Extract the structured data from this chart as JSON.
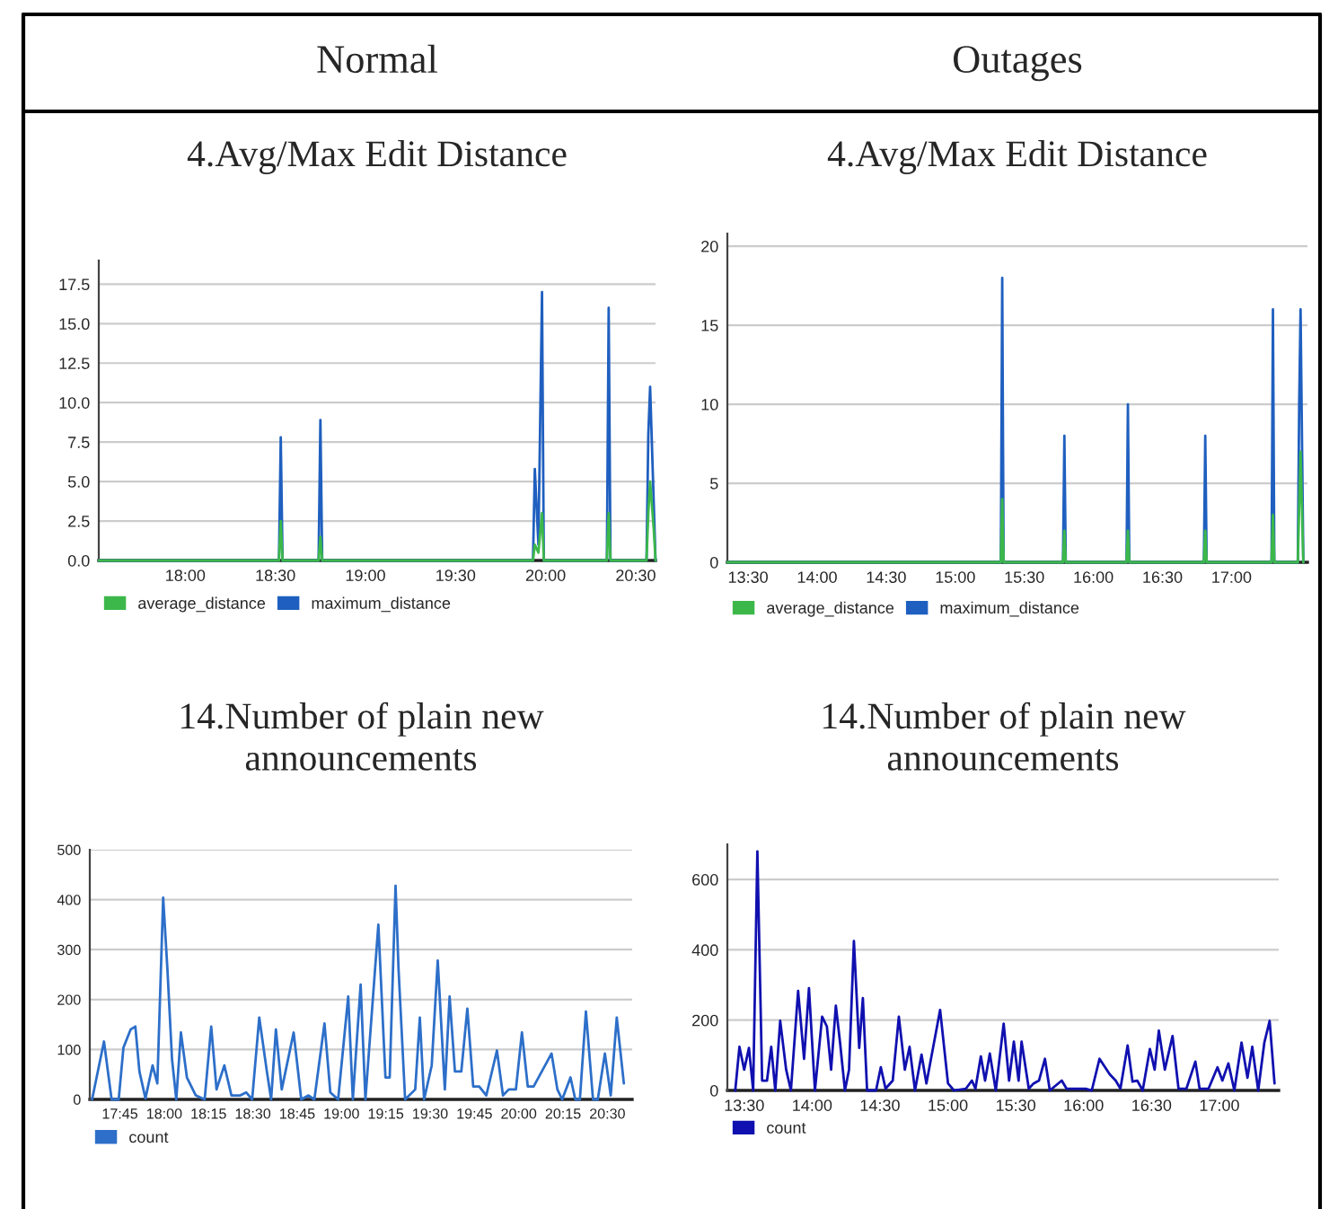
{
  "chart_data": [
    {
      "type": "line",
      "title": "4.Avg/Max Edit Distance",
      "annotations": [
        "Normal"
      ],
      "grid": "y",
      "legend": "bottom left",
      "xlim": [
        17.52,
        20.61
      ],
      "ylim": [
        0,
        19
      ],
      "xticks": [
        {
          "value": 18,
          "label": "18:00"
        },
        {
          "value": 18.5,
          "label": "18:30"
        },
        {
          "value": 19,
          "label": "19:00"
        },
        {
          "value": 19.5,
          "label": "19:30"
        },
        {
          "value": 20,
          "label": "20:00"
        },
        {
          "value": 20.5,
          "label": "20:30"
        }
      ],
      "yticks": [
        {
          "value": 0,
          "label": "0.0"
        },
        2.5,
        {
          "value": 5,
          "label": "5.0"
        },
        7.5,
        {
          "value": 10,
          "label": "10.0"
        },
        12.5,
        {
          "value": 15,
          "label": "15.0"
        },
        17.5
      ],
      "series": [
        {
          "name": "average_distance",
          "color": "#3cb84a",
          "x": [
            17.52,
            18.52,
            18.53,
            18.54,
            18.74,
            18.75,
            18.76,
            19.93,
            19.94,
            19.96,
            19.98,
            19.99,
            20.34,
            20.35,
            20.36,
            20.56,
            20.57,
            20.58,
            20.6,
            20.61
          ],
          "values": [
            0,
            0,
            2.5,
            0,
            0,
            1.5,
            0,
            0,
            1,
            0.5,
            3,
            0,
            0,
            3,
            0,
            0,
            3,
            5,
            2,
            0
          ]
        },
        {
          "name": "maximum_distance",
          "color": "#1f5fbf",
          "x": [
            17.52,
            18.52,
            18.53,
            18.54,
            18.74,
            18.75,
            18.76,
            19.93,
            19.94,
            19.96,
            19.98,
            19.99,
            20.34,
            20.35,
            20.36,
            20.56,
            20.57,
            20.58,
            20.61
          ],
          "values": [
            0,
            0,
            7.8,
            0,
            0,
            8.9,
            0,
            0,
            5.8,
            1,
            17,
            0,
            0,
            16,
            0,
            0,
            8,
            11,
            0
          ]
        }
      ]
    },
    {
      "type": "line",
      "title": "4.Avg/Max Edit Distance",
      "annotations": [
        "Outages"
      ],
      "grid": "y",
      "legend": "bottom left",
      "xlim": [
        13.35,
        17.55
      ],
      "ylim": [
        0,
        20.8
      ],
      "xticks": [
        {
          "value": 13.5,
          "label": "13:30"
        },
        {
          "value": 14,
          "label": "14:00"
        },
        {
          "value": 14.5,
          "label": "14:30"
        },
        {
          "value": 15,
          "label": "15:00"
        },
        {
          "value": 15.5,
          "label": "15:30"
        },
        {
          "value": 16,
          "label": "16:00"
        },
        {
          "value": 16.5,
          "label": "16:30"
        },
        {
          "value": 17,
          "label": "17:00"
        }
      ],
      "yticks": [
        0,
        5,
        10,
        15,
        20
      ],
      "series": [
        {
          "name": "average_distance",
          "color": "#3cb84a",
          "x": [
            13.35,
            15.33,
            15.34,
            15.35,
            15.78,
            15.79,
            15.8,
            16.24,
            16.25,
            16.26,
            16.8,
            16.81,
            16.82,
            17.29,
            17.3,
            17.31,
            17.48,
            17.5,
            17.52
          ],
          "values": [
            0,
            0,
            4,
            0,
            0,
            2,
            0,
            0,
            2,
            0,
            0,
            2,
            0,
            0,
            3,
            0,
            0,
            7,
            0
          ]
        },
        {
          "name": "maximum_distance",
          "color": "#1f5fbf",
          "x": [
            13.35,
            15.33,
            15.34,
            15.35,
            15.78,
            15.79,
            15.8,
            16.24,
            16.25,
            16.26,
            16.8,
            16.81,
            16.82,
            17.29,
            17.3,
            17.31,
            17.48,
            17.49,
            17.5,
            17.52
          ],
          "values": [
            0,
            0,
            18,
            0,
            0,
            8,
            0,
            0,
            10,
            0,
            0,
            8,
            0,
            0,
            16,
            0,
            0,
            10,
            16,
            0
          ]
        }
      ]
    },
    {
      "type": "line",
      "title": "14.Number of plain new\nannouncements",
      "grid": "y",
      "legend": "bottom left",
      "xlim": [
        17.58,
        20.64
      ],
      "ylim": [
        0,
        500
      ],
      "xticks": [
        {
          "value": 17.75,
          "label": "17:45"
        },
        {
          "value": 18,
          "label": "18:00"
        },
        {
          "value": 18.25,
          "label": "18:15"
        },
        {
          "value": 18.5,
          "label": "18:30"
        },
        {
          "value": 18.75,
          "label": "18:45"
        },
        {
          "value": 19,
          "label": "19:00"
        },
        {
          "value": 19.25,
          "label": "19:15"
        },
        {
          "value": 19.5,
          "label": "19:30"
        },
        {
          "value": 19.75,
          "label": "19:45"
        },
        {
          "value": 20,
          "label": "20:00"
        },
        {
          "value": 20.25,
          "label": "20:15"
        },
        {
          "value": 20.5,
          "label": "20:30"
        }
      ],
      "yticks": [
        0,
        100,
        200,
        300,
        400,
        500
      ],
      "series": [
        {
          "name": "count",
          "color": "#2d6fc9",
          "x": [
            17.593,
            17.66,
            17.703,
            17.743,
            17.77,
            17.81,
            17.837,
            17.86,
            17.894,
            17.934,
            17.961,
            17.994,
            18.018,
            18.044,
            18.068,
            18.094,
            18.128,
            18.178,
            18.228,
            18.265,
            18.295,
            18.339,
            18.379,
            18.429,
            18.462,
            18.496,
            18.536,
            18.579,
            18.603,
            18.63,
            18.663,
            18.73,
            18.773,
            18.814,
            18.847,
            18.904,
            18.937,
            18.981,
            19.038,
            19.064,
            19.108,
            19.135,
            19.208,
            19.248,
            19.272,
            19.305,
            19.322,
            19.359,
            19.416,
            19.442,
            19.466,
            19.509,
            19.543,
            19.583,
            19.61,
            19.64,
            19.676,
            19.71,
            19.743,
            19.777,
            19.817,
            19.877,
            19.911,
            19.944,
            19.984,
            20.018,
            20.051,
            20.084,
            20.185,
            20.218,
            20.245,
            20.292,
            20.319,
            20.345,
            20.379,
            20.419,
            20.446,
            20.486,
            20.519,
            20.553,
            20.593
          ],
          "values": [
            0,
            116,
            0,
            0,
            104,
            140,
            146,
            56,
            2,
            68,
            32,
            404,
            260,
            80,
            0,
            134,
            44,
            8,
            0,
            146,
            20,
            68,
            8,
            8,
            14,
            0,
            164,
            56,
            0,
            140,
            20,
            134,
            0,
            8,
            0,
            152,
            14,
            0,
            206,
            0,
            230,
            0,
            350,
            44,
            44,
            428,
            260,
            0,
            20,
            164,
            0,
            68,
            278,
            20,
            206,
            56,
            56,
            182,
            26,
            26,
            8,
            98,
            8,
            20,
            20,
            134,
            26,
            26,
            92,
            20,
            0,
            44,
            0,
            0,
            176,
            0,
            0,
            92,
            8,
            164,
            32
          ]
        }
      ]
    },
    {
      "type": "line",
      "title": "14.Number of plain new\nannouncements",
      "grid": "y",
      "legend": "bottom left",
      "xlim": [
        13.376,
        17.437
      ],
      "ylim": [
        0,
        700
      ],
      "xticks": [
        {
          "value": 13.5,
          "label": "13:30"
        },
        {
          "value": 14,
          "label": "14:00"
        },
        {
          "value": 14.5,
          "label": "14:30"
        },
        {
          "value": 15,
          "label": "15:00"
        },
        {
          "value": 15.5,
          "label": "15:30"
        },
        {
          "value": 16,
          "label": "16:00"
        },
        {
          "value": 16.5,
          "label": "16:30"
        },
        {
          "value": 17,
          "label": "17:00"
        }
      ],
      "yticks": [
        0,
        200,
        400,
        600
      ],
      "series": [
        {
          "name": "count",
          "color": "#1010b0",
          "x": [
            13.434,
            13.465,
            13.5,
            13.535,
            13.566,
            13.597,
            13.632,
            13.668,
            13.699,
            13.729,
            13.765,
            13.809,
            13.844,
            13.897,
            13.941,
            13.977,
            14.021,
            14.074,
            14.109,
            14.14,
            14.175,
            14.206,
            14.242,
            14.272,
            14.308,
            14.347,
            14.374,
            14.405,
            14.471,
            14.506,
            14.541,
            14.594,
            14.639,
            14.683,
            14.718,
            14.758,
            14.806,
            14.842,
            14.943,
            15.001,
            15.045,
            15.133,
            15.177,
            15.203,
            15.243,
            15.274,
            15.309,
            15.353,
            15.411,
            15.451,
            15.486,
            15.521,
            15.543,
            15.596,
            15.632,
            15.671,
            15.715,
            15.751,
            15.839,
            15.874,
            15.949,
            16.015,
            16.06,
            16.117,
            16.192,
            16.236,
            16.271,
            16.324,
            16.36,
            16.395,
            16.435,
            16.488,
            16.523,
            16.554,
            16.598,
            16.655,
            16.699,
            16.757,
            16.823,
            16.854,
            16.92,
            16.986,
            17.022,
            17.066,
            17.11,
            17.163,
            17.207,
            17.242,
            17.286,
            17.331,
            17.37,
            17.406
          ],
          "values": [
            0,
            124,
            59,
            121,
            0,
            680,
            28,
            28,
            124,
            0,
            198,
            59,
            0,
            283,
            90,
            291,
            0,
            210,
            182,
            59,
            241,
            136,
            0,
            59,
            425,
            121,
            263,
            0,
            0,
            66,
            5,
            28,
            210,
            59,
            124,
            0,
            102,
            20,
            229,
            20,
            0,
            5,
            28,
            5,
            97,
            28,
            105,
            0,
            190,
            28,
            139,
            28,
            139,
            5,
            20,
            28,
            90,
            0,
            28,
            5,
            5,
            5,
            0,
            90,
            46,
            28,
            5,
            128,
            25,
            28,
            0,
            118,
            59,
            170,
            59,
            155,
            5,
            5,
            82,
            5,
            5,
            66,
            28,
            77,
            0,
            136,
            36,
            124,
            0,
            136,
            198,
            20
          ]
        }
      ]
    }
  ]
}
